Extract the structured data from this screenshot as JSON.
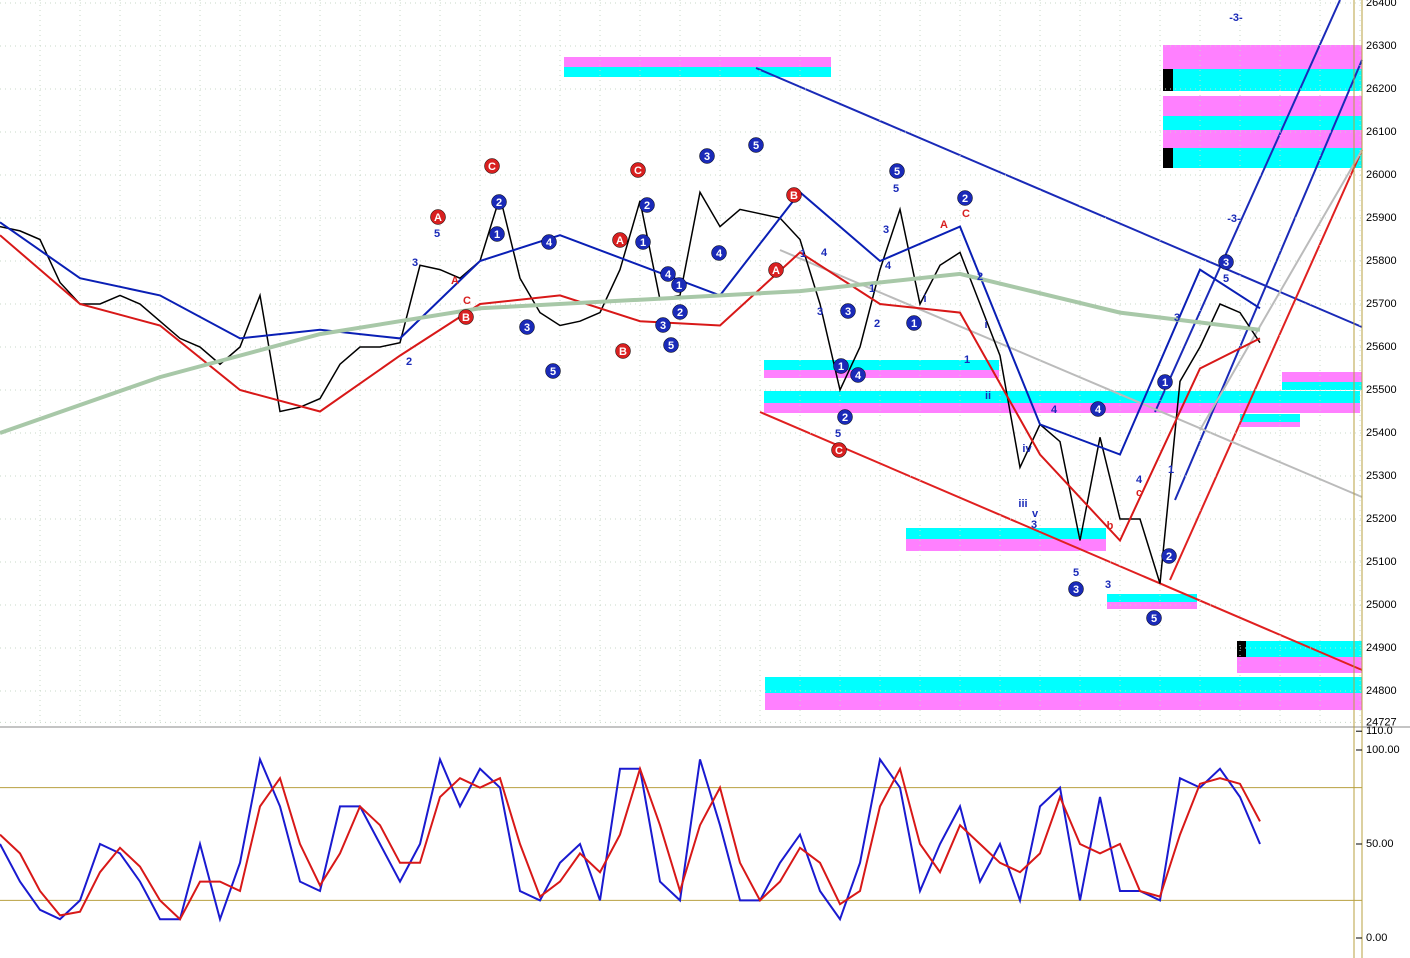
{
  "chart_data": [
    {
      "type": "line",
      "xlim": [
        0,
        68.1
      ],
      "ylim": [
        24720,
        26407
      ],
      "yticks": [
        {
          "value": 24727,
          "label": "24727"
        },
        24800,
        24900,
        25000,
        25100,
        25200,
        25300,
        25400,
        25500,
        25600,
        25700,
        25800,
        25900,
        26000,
        26100,
        26200,
        26300,
        26400
      ],
      "grid": true,
      "series": [
        {
          "name": "Price",
          "color": "#000000",
          "x": [
            0,
            1,
            2,
            3,
            4,
            5,
            6,
            7,
            8,
            9,
            10,
            11,
            12,
            13,
            14,
            15,
            16,
            17,
            18,
            19,
            20,
            21,
            22,
            23,
            24,
            25,
            26,
            27,
            28,
            29,
            30,
            31,
            32,
            33,
            34,
            35,
            36,
            37,
            38,
            39,
            40,
            41,
            42,
            43,
            44,
            45,
            46,
            47,
            48,
            49,
            50,
            51,
            52,
            53,
            54,
            55,
            56,
            57,
            58,
            59,
            60,
            61,
            62,
            63
          ],
          "values": [
            25880,
            25870,
            25850,
            25750,
            25700,
            25700,
            25720,
            25700,
            25660,
            25620,
            25600,
            25560,
            25600,
            25720,
            25450,
            25460,
            25480,
            25560,
            25600,
            25600,
            25610,
            25790,
            25780,
            25760,
            25800,
            25950,
            25760,
            25680,
            25650,
            25660,
            25680,
            25780,
            25940,
            25710,
            25720,
            25960,
            25880,
            25920,
            25910,
            25900,
            25850,
            25700,
            25500,
            25600,
            25780,
            25920,
            25700,
            25790,
            25820,
            25700,
            25580,
            25320,
            25420,
            25380,
            25150,
            25390,
            25200,
            25200,
            25050,
            25520,
            25600,
            25700,
            25680,
            25610
          ]
        },
        {
          "name": "Upper",
          "color": "#0a1fb5",
          "x": [
            0,
            4,
            8,
            12,
            16,
            20,
            24,
            28,
            32,
            36,
            40,
            44,
            48,
            52,
            56,
            60,
            63
          ],
          "values": [
            25890,
            25760,
            25720,
            25620,
            25640,
            25620,
            25800,
            25860,
            25790,
            25720,
            25960,
            25800,
            25880,
            25420,
            25350,
            25780,
            25690
          ]
        },
        {
          "name": "Lower",
          "color": "#d81818",
          "x": [
            0,
            4,
            8,
            12,
            16,
            20,
            24,
            28,
            32,
            36,
            40,
            44,
            48,
            52,
            56,
            60,
            63
          ],
          "values": [
            25860,
            25700,
            25650,
            25500,
            25450,
            25580,
            25700,
            25720,
            25660,
            25650,
            25820,
            25700,
            25680,
            25350,
            25150,
            25550,
            25620
          ]
        },
        {
          "name": "Average",
          "color": "#a8c8a8",
          "x": [
            0,
            8,
            16,
            24,
            32,
            40,
            48,
            56,
            63
          ],
          "values": [
            25400,
            25530,
            25630,
            25690,
            25710,
            25730,
            25770,
            25680,
            25640
          ]
        }
      ],
      "annotations": [
        "C",
        "C",
        "3",
        "5",
        "5",
        "2",
        "A",
        "B",
        "A",
        "A",
        "B",
        "B",
        "C",
        "1",
        "2",
        "4",
        "3",
        "5",
        "2",
        "1",
        "4",
        "1",
        "2",
        "3",
        "5",
        "4",
        "3",
        "1",
        "4",
        "2",
        "1",
        "4",
        "3",
        "5",
        "2",
        "1",
        "3",
        "-3-",
        "-3-",
        "5",
        "3",
        "2",
        "5",
        "3",
        "4",
        "1",
        "2",
        "3",
        "4",
        "1",
        "5",
        "ii",
        "iii",
        "iv",
        "v",
        "4",
        "3",
        "5",
        "3",
        "4",
        "1",
        "3",
        "5",
        "1",
        "i",
        "2",
        "i",
        "A",
        "C",
        "A",
        "C",
        "c",
        "b"
      ]
    },
    {
      "type": "line",
      "xlim": [
        0,
        68.1
      ],
      "ylim": [
        -10.6,
        109.5
      ],
      "yticks": [
        {
          "value": 0,
          "label": "0.00"
        },
        {
          "value": 50,
          "label": "50.00"
        },
        {
          "value": 100,
          "label": "100.00"
        },
        {
          "value": 110,
          "label": "110.0"
        }
      ],
      "ref_lines": [
        20,
        80
      ],
      "series": [
        {
          "name": "%K",
          "color": "#1a1ad0",
          "x": [
            0,
            1,
            2,
            3,
            4,
            5,
            6,
            7,
            8,
            9,
            10,
            11,
            12,
            13,
            14,
            15,
            16,
            17,
            18,
            19,
            20,
            21,
            22,
            23,
            24,
            25,
            26,
            27,
            28,
            29,
            30,
            31,
            32,
            33,
            34,
            35,
            36,
            37,
            38,
            39,
            40,
            41,
            42,
            43,
            44,
            45,
            46,
            47,
            48,
            49,
            50,
            51,
            52,
            53,
            54,
            55,
            56,
            57,
            58,
            59,
            60,
            61,
            62,
            63
          ],
          "values": [
            50,
            30,
            15,
            10,
            20,
            50,
            45,
            30,
            10,
            10,
            50,
            10,
            40,
            95,
            70,
            30,
            25,
            70,
            70,
            50,
            30,
            50,
            95,
            70,
            90,
            80,
            25,
            20,
            40,
            50,
            20,
            90,
            90,
            30,
            20,
            95,
            60,
            20,
            20,
            40,
            55,
            25,
            10,
            40,
            95,
            80,
            25,
            50,
            70,
            30,
            50,
            20,
            70,
            80,
            20,
            75,
            25,
            25,
            20,
            85,
            80,
            90,
            75,
            50
          ]
        },
        {
          "name": "%D",
          "color": "#d81818",
          "x": [
            0,
            1,
            2,
            3,
            4,
            5,
            6,
            7,
            8,
            9,
            10,
            11,
            12,
            13,
            14,
            15,
            16,
            17,
            18,
            19,
            20,
            21,
            22,
            23,
            24,
            25,
            26,
            27,
            28,
            29,
            30,
            31,
            32,
            33,
            34,
            35,
            36,
            37,
            38,
            39,
            40,
            41,
            42,
            43,
            44,
            45,
            46,
            47,
            48,
            49,
            50,
            51,
            52,
            53,
            54,
            55,
            56,
            57,
            58,
            59,
            60,
            61,
            62,
            63
          ],
          "values": [
            55,
            45,
            25,
            12,
            14,
            35,
            48,
            38,
            20,
            10,
            30,
            30,
            25,
            70,
            85,
            50,
            28,
            45,
            70,
            60,
            40,
            40,
            75,
            85,
            80,
            85,
            50,
            22,
            30,
            45,
            35,
            55,
            90,
            60,
            25,
            60,
            80,
            40,
            20,
            30,
            48,
            40,
            18,
            25,
            70,
            90,
            50,
            35,
            60,
            50,
            40,
            35,
            45,
            75,
            50,
            45,
            50,
            25,
            22,
            55,
            82,
            85,
            82,
            62
          ]
        }
      ]
    }
  ]
}
